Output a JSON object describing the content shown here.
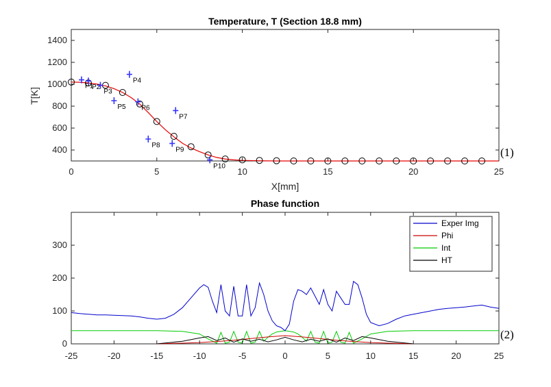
{
  "chart_data": [
    {
      "type": "line",
      "title": "Temperature, T (Section 18.8 mm)",
      "xlabel": "X[mm]",
      "ylabel": "T[K]",
      "xlim": [
        0,
        25
      ],
      "ylim": [
        300,
        1500
      ],
      "xticks": [
        "0",
        "5",
        "10",
        "15",
        "20",
        "25"
      ],
      "yticks": [
        "400",
        "600",
        "800",
        "1000",
        "1200",
        "1400"
      ],
      "annotation": "(1)",
      "series": [
        {
          "style": "line",
          "color": "#e60000",
          "x": [
            0,
            0.5,
            1,
            1.5,
            2,
            2.5,
            3,
            3.5,
            4,
            4.5,
            5,
            5.5,
            6,
            6.5,
            7,
            7.5,
            8,
            8.5,
            9,
            9.5,
            10,
            11,
            12,
            13,
            14,
            15,
            16,
            17,
            18,
            19,
            20,
            21,
            22,
            23,
            24,
            25
          ],
          "y": [
            1020,
            1018,
            1012,
            1002,
            985,
            960,
            925,
            878,
            820,
            742,
            660,
            585,
            520,
            462,
            418,
            385,
            355,
            332,
            318,
            310,
            305,
            302,
            300,
            300,
            300,
            300,
            300,
            300,
            300,
            300,
            300,
            300,
            300,
            300,
            300,
            300
          ]
        },
        {
          "style": "circles",
          "color": "#000000",
          "x": [
            0,
            1,
            2,
            3,
            4,
            5,
            6,
            7,
            8,
            9,
            10,
            11,
            12,
            13,
            14,
            15,
            16,
            17,
            18,
            19,
            20,
            21,
            22,
            23,
            24
          ],
          "y": [
            1020,
            1012,
            990,
            925,
            820,
            660,
            525,
            430,
            355,
            318,
            310,
            305,
            302,
            300,
            300,
            300,
            300,
            300,
            300,
            300,
            300,
            300,
            300,
            300,
            300
          ]
        },
        {
          "style": "points",
          "color": "#3333ff",
          "labels": [
            "P1",
            "P2",
            "P3",
            "P4",
            "P5",
            "P6",
            "P7",
            "P8",
            "P9",
            "P10"
          ],
          "x": [
            0.6,
            1.0,
            1.7,
            3.4,
            2.5,
            3.9,
            6.1,
            4.5,
            5.9,
            8.1
          ],
          "y": [
            1040,
            1030,
            990,
            1090,
            850,
            840,
            760,
            500,
            460,
            310
          ]
        }
      ]
    },
    {
      "type": "line",
      "title": "Phase function",
      "xlim": [
        -25,
        25
      ],
      "ylim": [
        0,
        400
      ],
      "xticks": [
        "-25",
        "-20",
        "-15",
        "-10",
        "-5",
        "0",
        "5",
        "10",
        "15",
        "20",
        "25"
      ],
      "yticks": [
        "0",
        "100",
        "200",
        "300"
      ],
      "annotation": "(2)",
      "legend_position": "top-right",
      "series": [
        {
          "name": "Exper Img",
          "color": "#0000cc",
          "x": [
            -25,
            -24,
            -23,
            -22,
            -21,
            -20,
            -19,
            -18,
            -17,
            -16,
            -15,
            -14,
            -13,
            -12,
            -11,
            -10,
            -9.5,
            -9,
            -8.5,
            -8,
            -7.5,
            -7,
            -6.5,
            -6,
            -5.5,
            -5,
            -4.5,
            -4,
            -3.5,
            -3,
            -2.5,
            -2,
            -1.5,
            -1,
            -0.5,
            0,
            0.5,
            1,
            1.5,
            2,
            2.5,
            3,
            3.5,
            4,
            4.5,
            5,
            5.5,
            6,
            6.5,
            7,
            7.5,
            8,
            8.5,
            9,
            9.5,
            10,
            11,
            12,
            13,
            14,
            15,
            16,
            17,
            18,
            19,
            20,
            21,
            22,
            23,
            24,
            25
          ],
          "y": [
            95,
            92,
            90,
            88,
            88,
            87,
            86,
            85,
            82,
            78,
            75,
            78,
            90,
            110,
            140,
            170,
            180,
            172,
            130,
            95,
            180,
            100,
            85,
            175,
            85,
            85,
            180,
            85,
            110,
            185,
            150,
            100,
            70,
            55,
            50,
            40,
            60,
            130,
            165,
            160,
            150,
            170,
            145,
            120,
            165,
            120,
            100,
            160,
            140,
            120,
            120,
            190,
            180,
            140,
            90,
            65,
            55,
            62,
            75,
            85,
            90,
            95,
            100,
            105,
            108,
            110,
            112,
            115,
            118,
            112,
            108
          ]
        },
        {
          "name": "Phi",
          "color": "#cc0000",
          "x": [
            -15,
            -12,
            -10,
            -8,
            -6,
            -4,
            -2,
            0,
            2,
            4,
            6,
            8,
            10,
            12,
            15
          ],
          "y": [
            0,
            2,
            4,
            7,
            11,
            16,
            21,
            25,
            21,
            16,
            11,
            7,
            4,
            2,
            0
          ]
        },
        {
          "name": "Int",
          "color": "#00cc00",
          "x": [
            -25,
            -15,
            -12,
            -10,
            -9,
            -8,
            -7.5,
            -7,
            -6.5,
            -6,
            -5.5,
            -5,
            -4.5,
            -4,
            -3.5,
            -3,
            -2.5,
            -2,
            -1.5,
            -1,
            0,
            1,
            1.5,
            2,
            2.5,
            3,
            3.5,
            4,
            4.5,
            5,
            5.5,
            6,
            6.5,
            7,
            7.5,
            8,
            9,
            10,
            12,
            15,
            25
          ],
          "y": [
            40,
            40,
            38,
            30,
            15,
            2,
            35,
            2,
            5,
            38,
            5,
            2,
            38,
            2,
            5,
            38,
            8,
            20,
            30,
            36,
            40,
            36,
            30,
            20,
            8,
            38,
            5,
            2,
            38,
            2,
            5,
            38,
            5,
            2,
            35,
            2,
            15,
            30,
            38,
            40,
            40
          ]
        },
        {
          "name": "HT",
          "color": "#000000",
          "x": [
            -15,
            -12,
            -10,
            -9,
            -8,
            -7,
            -6,
            -5,
            -4,
            -3,
            -2,
            -1,
            0,
            1,
            2,
            3,
            4,
            5,
            6,
            7,
            8,
            9,
            10,
            12,
            15
          ],
          "y": [
            0,
            8,
            18,
            22,
            10,
            18,
            5,
            15,
            8,
            14,
            6,
            12,
            20,
            12,
            6,
            14,
            8,
            15,
            5,
            18,
            10,
            22,
            18,
            8,
            0
          ]
        }
      ]
    }
  ]
}
